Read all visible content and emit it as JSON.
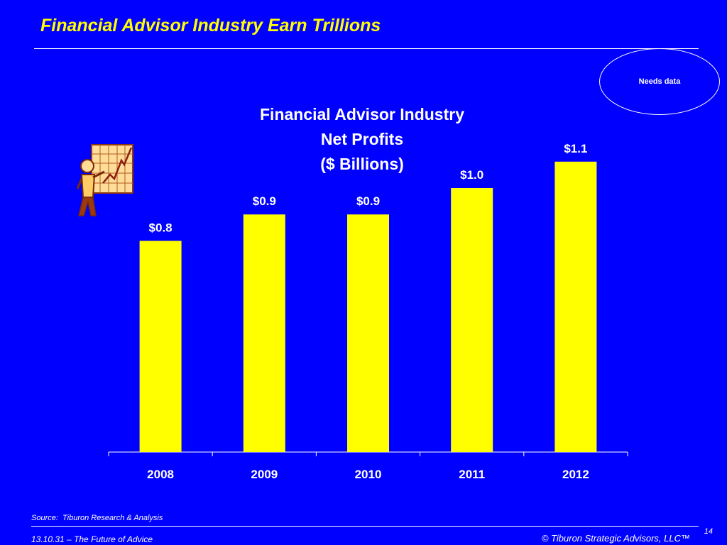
{
  "slide": {
    "title": "Financial Advisor Industry Earn Trillions",
    "badge": "Needs data",
    "source": "Source:  Tiburon Research & Analysis",
    "footer_left": "13.10.31 – The Future of Advice",
    "footer_right": "© Tiburon Strategic Advisors, LLC™",
    "page_number": "14"
  },
  "chart_data": {
    "type": "bar",
    "title_lines": [
      "Financial Advisor Industry",
      "Net Profits",
      "($ Billions)"
    ],
    "categories": [
      "2008",
      "2009",
      "2010",
      "2011",
      "2012"
    ],
    "values": [
      0.8,
      0.9,
      0.9,
      1.0,
      1.1
    ],
    "data_labels": [
      "$0.8",
      "$0.9",
      "$0.9",
      "$1.0",
      "$1.1"
    ],
    "ylim": [
      0,
      1.1
    ],
    "grid": false,
    "legend": "none",
    "bar_color": "#ffff00",
    "axis_color": "#ffffff"
  },
  "colors": {
    "background": "#0000ff",
    "title": "#ffff00",
    "text": "#ffffff"
  },
  "icons": {
    "clipart": "man-presenting-rising-chart-icon"
  }
}
